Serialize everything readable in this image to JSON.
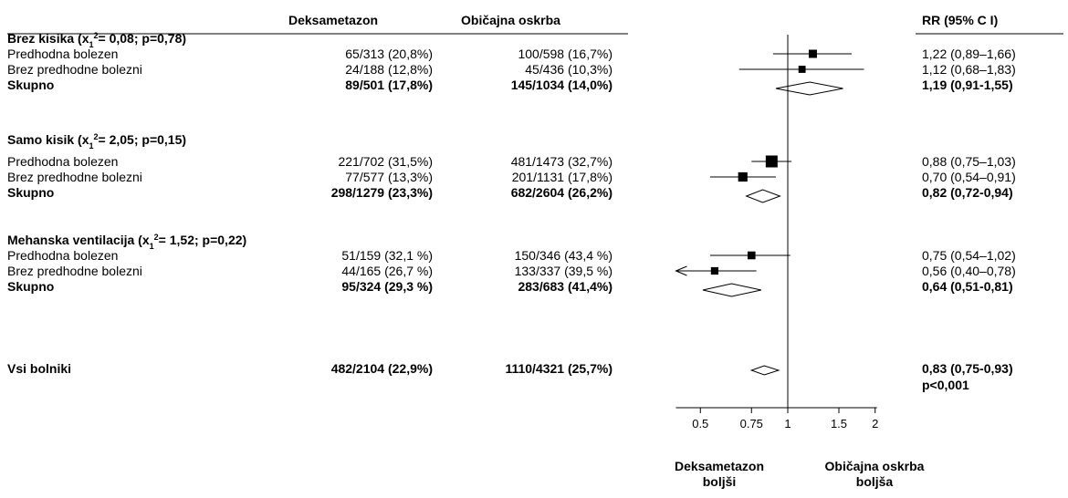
{
  "columns": {
    "deks": "Deksametazon",
    "obic": "Običajna oskrba",
    "rr": "RR (95% C I)"
  },
  "chart_data": {
    "type": "forest",
    "x_scale": "log",
    "xlim": [
      0.4,
      2
    ],
    "reference_line": 1,
    "ticks": [
      {
        "value": 0.5,
        "label": "0.5"
      },
      {
        "value": 0.75,
        "label": "0.75"
      },
      {
        "value": 1,
        "label": "1"
      },
      {
        "value": 1.5,
        "label": "1.5"
      },
      {
        "value": 2,
        "label": "2"
      }
    ],
    "footer_left": [
      "Deksametazon",
      "boljši"
    ],
    "footer_right": [
      "Običajna oskrba",
      "boljša"
    ],
    "groups": [
      {
        "name": "Brez kisika",
        "stat_x2": "0,08",
        "stat_p": "p=0,78",
        "rows": [
          {
            "label": "Predhodna bolezen",
            "deks": "65/313 (20,8%)",
            "obic": "100/598 (16,7%)",
            "rr_text": "1,22 (0,89–1,66)",
            "rr": 1.22,
            "lo": 0.89,
            "hi": 1.66,
            "weight": 0.5
          },
          {
            "label": "Brez predhodne bolezni",
            "deks": "24/188 (12,8%)",
            "obic": "45/436 (10,3%)",
            "rr_text": "1,12 (0,68–1,83)",
            "rr": 1.12,
            "lo": 0.68,
            "hi": 1.83,
            "weight": 0.35
          }
        ],
        "total": {
          "label": "Skupno",
          "deks": "89/501 (17,8%)",
          "obic": "145/1034 (14,0%)",
          "rr_text": "1,19 (0,91-1,55)",
          "rr": 1.19,
          "lo": 0.91,
          "hi": 1.55
        }
      },
      {
        "name": "Samo kisik",
        "stat_x2": "2,05",
        "stat_p": "p=0,15",
        "rows": [
          {
            "label": "Predhodna bolezen",
            "deks": "221/702 (31,5%)",
            "obic": "481/1473 (32,7%)",
            "rr_text": "0,88 (0,75–1,03)",
            "rr": 0.88,
            "lo": 0.75,
            "hi": 1.03,
            "weight": 1.0
          },
          {
            "label": "Brez predhodne bolezni",
            "deks": "77/577 (13,3%)",
            "obic": "201/1131 (17,8%)",
            "rr_text": "0,70 (0,54–0,91)",
            "rr": 0.7,
            "lo": 0.54,
            "hi": 0.91,
            "weight": 0.65
          }
        ],
        "total": {
          "label": "Skupno",
          "deks": "298/1279 (23,3%)",
          "obic": "682/2604 (26,2%)",
          "rr_text": "0,82 (0,72-0,94)",
          "rr": 0.82,
          "lo": 0.72,
          "hi": 0.94
        }
      },
      {
        "name": "Mehanska ventilacija",
        "stat_x2": "1,52",
        "stat_p": "p=0,22",
        "rows": [
          {
            "label": "Predhodna bolezen",
            "deks": "51/159 (32,1 %)",
            "obic": "150/346 (43,4 %)",
            "rr_text": "0,75 (0,54–1,02)",
            "rr": 0.75,
            "lo": 0.54,
            "hi": 1.02,
            "weight": 0.45
          },
          {
            "label": "Brez predhodne bolezni",
            "deks": "44/165 (26,7 %)",
            "obic": "133/337 (39,5 %)",
            "rr_text": "0,56 (0,40–0,78)",
            "rr": 0.56,
            "lo": 0.4,
            "hi": 0.78,
            "weight": 0.4,
            "arrow_left": true
          }
        ],
        "total": {
          "label": "Skupno",
          "deks": "95/324 (29,3 %)",
          "obic": "283/683 (41,4%)",
          "rr_text": "0,64 (0,51-0,81)",
          "rr": 0.64,
          "lo": 0.51,
          "hi": 0.81
        }
      }
    ],
    "overall": {
      "label": "Vsi bolniki",
      "deks": "482/2104 (22,9%)",
      "obic": "1110/4321 (25,7%)",
      "rr_text": "0,83 (0,75-0,93)",
      "p_text": "p<0,001",
      "rr": 0.83,
      "lo": 0.75,
      "hi": 0.93
    }
  }
}
